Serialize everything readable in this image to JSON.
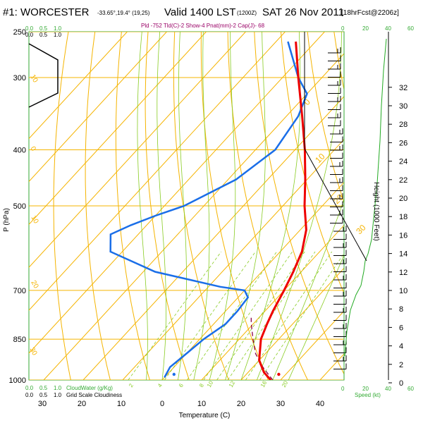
{
  "header": {
    "station": "#1: WORCESTER",
    "coords": "-33.65°,19.4° (19,25)",
    "valid": "Valid 1400 LST",
    "utc": "(1200Z)",
    "date": "SAT 26 Nov 2011",
    "forecast": "[18hrFcst@2206z]",
    "indices": "Pld -752 Tld(C)-2 Show-4 Pnat(mm)-2 Cap(J)- 68"
  },
  "colors": {
    "temperature": "#ee0000",
    "dewpoint": "#1a6ee8",
    "parcel": "#880044",
    "isotherm": "#f5b400",
    "dry_adiabat": "#f5b400",
    "moist_adiabat": "#88cc22",
    "mixing_ratio": "#88cc22",
    "axis_green": "#33aa33",
    "indices_text": "#990066",
    "speed_curve": "#22aa22"
  },
  "cloud_scale": {
    "top_labels": [
      "0.0",
      "0.5",
      "1.0"
    ],
    "bottom_labels": [
      "0.0",
      "0.5",
      "1.0"
    ],
    "cloud_water_label": "CloudWater (g/Kg)",
    "grid_cloudiness_label": "Grid Scale Cloudiness"
  },
  "speed_scale": {
    "top_labels": [
      "0",
      "20",
      "40",
      "60"
    ],
    "bottom_labels": [
      "0",
      "20",
      "40",
      "60"
    ],
    "unit_label": "Speed (kt)"
  },
  "chart_data": {
    "type": "line",
    "xlabel": "Temperature (C)",
    "ylabel": "P (hPa)",
    "right_axis_label": "Height (1000 Feet)",
    "pressure_ticks": [
      250,
      300,
      400,
      500,
      700,
      850,
      1000
    ],
    "temperature_ticks": [
      30,
      20,
      10,
      0,
      10,
      20,
      30,
      40
    ],
    "temperature_tick_values": [
      -30,
      -20,
      -10,
      0,
      10,
      20,
      30,
      40
    ],
    "height_ticks": [
      0,
      2,
      4,
      6,
      8,
      10,
      12,
      14,
      16,
      18,
      20,
      22,
      24,
      26,
      28,
      30,
      32
    ],
    "isotherm_labels": [
      "0",
      "10",
      "20",
      "30"
    ],
    "dry_adiabat_labels": [
      "10",
      "0",
      "10",
      "20",
      "30"
    ],
    "mixing_ratio_labels": [
      "2",
      "4",
      "6",
      "8",
      "10",
      "12",
      "16",
      "20"
    ],
    "series": [
      {
        "name": "Temperature",
        "pressure": [
          1000,
          970,
          925,
          850,
          800,
          760,
          700,
          650,
          600,
          550,
          500,
          450,
          400,
          350,
          300,
          260
        ],
        "temperature": [
          27.5,
          24,
          20,
          15.5,
          13.5,
          12,
          10,
          8,
          5.5,
          1.5,
          -4.5,
          -10.5,
          -17.5,
          -26,
          -36,
          -45
        ]
      },
      {
        "name": "Dewpoint",
        "pressure": [
          990,
          950,
          900,
          850,
          800,
          760,
          720,
          700,
          690,
          650,
          600,
          560,
          540,
          520,
          500,
          450,
          400,
          350,
          320,
          300,
          260
        ],
        "temperature": [
          0,
          -1,
          0,
          1,
          3,
          3,
          2.5,
          0,
          -7,
          -27,
          -43,
          -47,
          -44,
          -40,
          -35,
          -28,
          -25,
          -27,
          -30,
          -36,
          -47
        ]
      },
      {
        "name": "Parcel",
        "pressure": [
          1000,
          950,
          900,
          850,
          800,
          780
        ],
        "temperature": [
          28,
          22.5,
          17.5,
          13.5,
          9.5,
          8
        ]
      }
    ]
  }
}
